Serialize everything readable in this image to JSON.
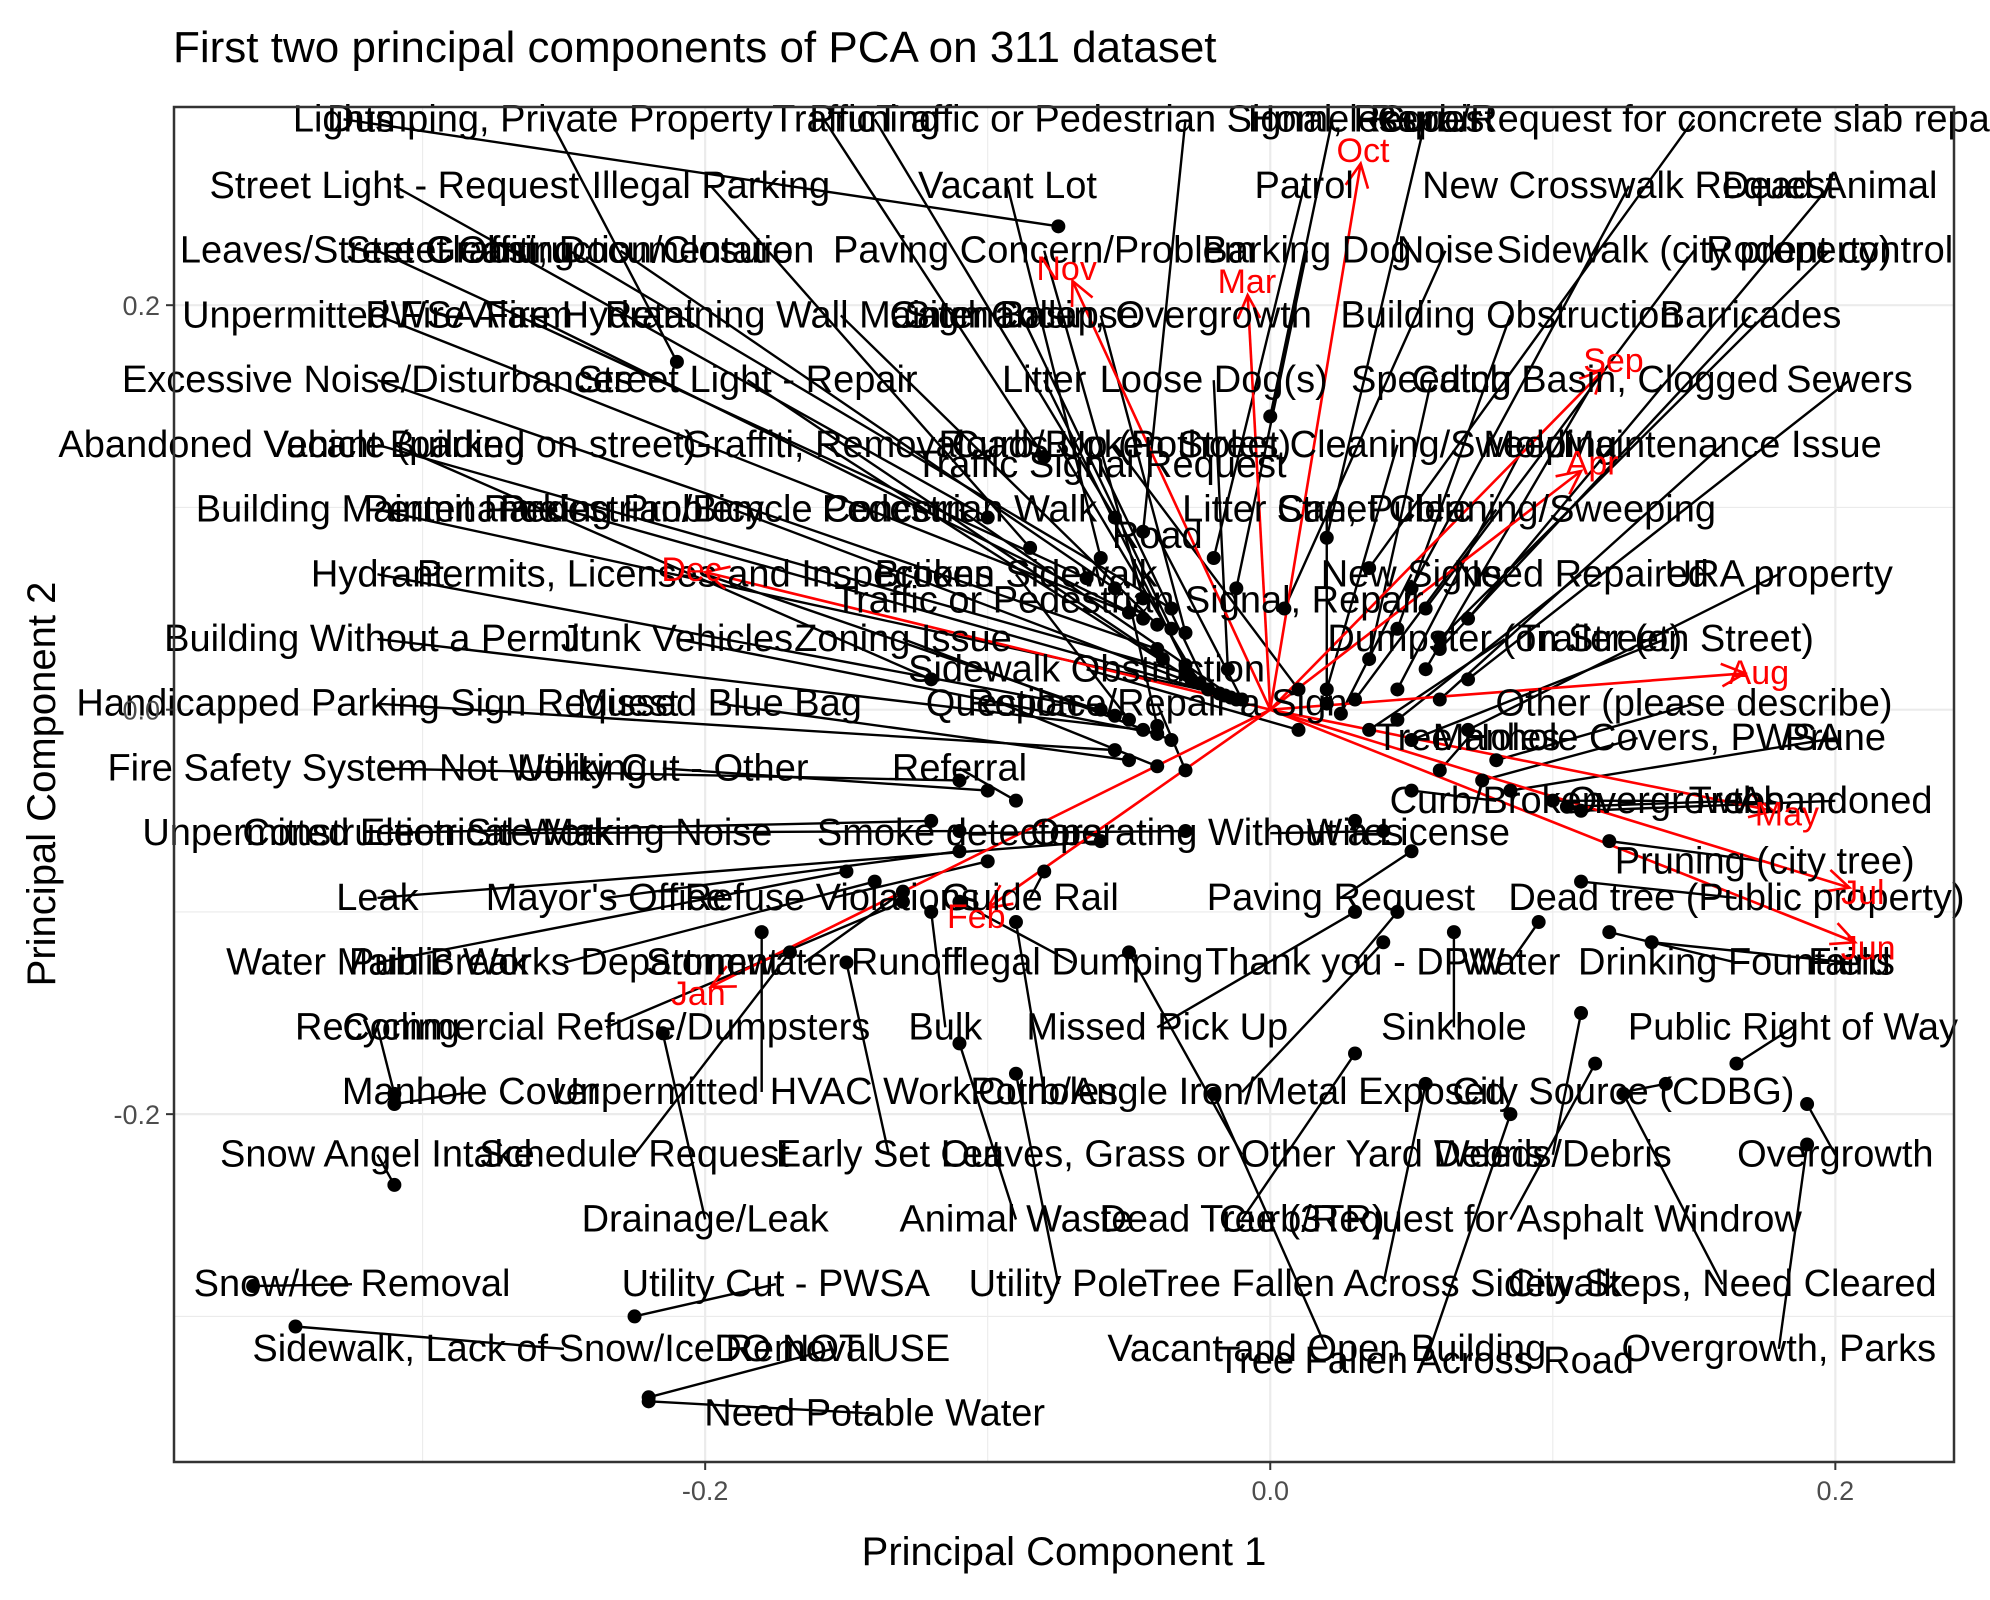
{
  "chart_data": {
    "type": "scatter",
    "title": "First two principal components of PCA on 311 dataset",
    "xlabel": "Principal Component 1",
    "ylabel": "Principal Component 2",
    "xlim": [
      -0.388,
      0.242
    ],
    "ylim": [
      -0.372,
      0.298
    ],
    "xticks": [
      -0.2,
      0.0,
      0.2
    ],
    "yticks": [
      -0.2,
      0.0,
      0.2
    ],
    "xtick_labels": [
      "-0.2",
      "0.0",
      "0.2"
    ],
    "ytick_labels": [
      "-0.2",
      "0.0",
      "0.2"
    ],
    "grid": true,
    "colors": {
      "points": "#000000",
      "loadings": "#ff0000",
      "grid": "#ebebeb",
      "panel_border": "#333333"
    },
    "points": [
      {
        "label": "Lights",
        "x": -0.075,
        "y": 0.239,
        "lx": -0.328,
        "ly": 0.286
      },
      {
        "label": "Dumping, Private Property",
        "x": -0.21,
        "y": 0.172,
        "lx": -0.255,
        "ly": 0.286
      },
      {
        "label": "Traffic",
        "x": -0.08,
        "y": 0.125,
        "lx": -0.158,
        "ly": 0.286
      },
      {
        "label": "Pruning",
        "x": -0.055,
        "y": 0.095,
        "lx": -0.14,
        "ly": 0.286
      },
      {
        "label": "Traffic or Pedestrian Signal, Request",
        "x": -0.045,
        "y": 0.088,
        "lx": -0.03,
        "ly": 0.286
      },
      {
        "label": "Homeless",
        "x": 0.0,
        "y": 0.145,
        "lx": 0.022,
        "ly": 0.286
      },
      {
        "label": "Repair",
        "x": 0.02,
        "y": 0.085,
        "lx": 0.055,
        "ly": 0.286
      },
      {
        "label": "Curb/Request for concrete slab repair",
        "x": 0.035,
        "y": 0.07,
        "lx": 0.15,
        "ly": 0.286
      },
      {
        "label": "Street Light - Request",
        "x": -0.1,
        "y": 0.095,
        "lx": -0.31,
        "ly": 0.253
      },
      {
        "label": "Illegal Parking",
        "x": -0.085,
        "y": 0.08,
        "lx": -0.198,
        "ly": 0.253
      },
      {
        "label": "Vacant Lot",
        "x": -0.06,
        "y": 0.075,
        "lx": -0.093,
        "ly": 0.253
      },
      {
        "label": "Patrol",
        "x": -0.02,
        "y": 0.075,
        "lx": 0.012,
        "ly": 0.253
      },
      {
        "label": "New Crosswalk Request",
        "x": 0.05,
        "y": 0.06,
        "lx": 0.127,
        "ly": 0.253
      },
      {
        "label": "Dead Animal",
        "x": 0.07,
        "y": 0.045,
        "lx": 0.198,
        "ly": 0.253
      },
      {
        "label": "Leaves/Street Cleaning",
        "x": -0.065,
        "y": 0.065,
        "lx": -0.316,
        "ly": 0.221
      },
      {
        "label": "Graffiti, Documentation",
        "x": -0.055,
        "y": 0.06,
        "lx": -0.23,
        "ly": 0.221
      },
      {
        "label": "Paving Concern/Problem",
        "x": -0.045,
        "y": 0.055,
        "lx": -0.08,
        "ly": 0.221
      },
      {
        "label": "Barking Dog",
        "x": -0.012,
        "y": 0.06,
        "lx": 0.013,
        "ly": 0.221
      },
      {
        "label": "Noise",
        "x": 0.005,
        "y": 0.05,
        "lx": 0.062,
        "ly": 0.221
      },
      {
        "label": "Sidewalk (city property)",
        "x": 0.055,
        "y": 0.05,
        "lx": 0.15,
        "ly": 0.221
      },
      {
        "label": "Rodent control",
        "x": 0.06,
        "y": 0.035,
        "lx": 0.198,
        "ly": 0.221
      },
      {
        "label": "Street Obstruction/Closure",
        "x": -0.035,
        "y": 0.05,
        "lx": -0.248,
        "ly": 0.221
      },
      {
        "label": "Unpermitted Fire Alarm",
        "x": -0.05,
        "y": 0.048,
        "lx": -0.316,
        "ly": 0.189
      },
      {
        "label": "PWSA Fire Hydrant",
        "x": -0.045,
        "y": 0.045,
        "lx": -0.262,
        "ly": 0.189
      },
      {
        "label": "Retaining Wall Maintenance",
        "x": -0.04,
        "y": 0.042,
        "lx": -0.152,
        "ly": 0.189
      },
      {
        "label": "Sign Collapse",
        "x": -0.035,
        "y": 0.04,
        "lx": -0.088,
        "ly": 0.189
      },
      {
        "label": "Catch Basin, Overgrowth",
        "x": -0.03,
        "y": 0.038,
        "lx": -0.06,
        "ly": 0.189
      },
      {
        "label": "Building Obstruction",
        "x": 0.045,
        "y": 0.04,
        "lx": 0.085,
        "ly": 0.189
      },
      {
        "label": "Barricades",
        "x": 0.06,
        "y": 0.03,
        "lx": 0.17,
        "ly": 0.189
      },
      {
        "label": "Excessive Noise/Disturbances",
        "x": -0.04,
        "y": 0.03,
        "lx": -0.316,
        "ly": 0.157
      },
      {
        "label": "Street Light - Repair",
        "x": -0.038,
        "y": 0.025,
        "lx": -0.185,
        "ly": 0.157
      },
      {
        "label": "Litter",
        "x": -0.03,
        "y": 0.022,
        "lx": -0.08,
        "ly": 0.157
      },
      {
        "label": "Loose Dog(s)",
        "x": -0.015,
        "y": 0.02,
        "lx": -0.02,
        "ly": 0.157
      },
      {
        "label": "Speeding",
        "x": 0.035,
        "y": 0.025,
        "lx": 0.057,
        "ly": 0.157
      },
      {
        "label": "Catch Basin, Clogged",
        "x": 0.055,
        "y": 0.02,
        "lx": 0.115,
        "ly": 0.157
      },
      {
        "label": "Sewers",
        "x": 0.07,
        "y": 0.015,
        "lx": 0.205,
        "ly": 0.157
      },
      {
        "label": "Abandoned Vehicle (parked on street)",
        "x": -0.03,
        "y": 0.018,
        "lx": -0.316,
        "ly": 0.125
      },
      {
        "label": "Vacant Building",
        "x": -0.12,
        "y": 0.015,
        "lx": -0.31,
        "ly": 0.125
      },
      {
        "label": "Graffiti, Removal",
        "x": -0.028,
        "y": 0.015,
        "lx": -0.158,
        "ly": 0.125
      },
      {
        "label": "Curb/Broken",
        "x": -0.025,
        "y": 0.013,
        "lx": -0.075,
        "ly": 0.125
      },
      {
        "label": "Roads Up (Potholes)",
        "x": 0.01,
        "y": 0.01,
        "lx": -0.055,
        "ly": 0.125
      },
      {
        "label": "Street Cleaning/Sweeping",
        "x": 0.02,
        "y": 0.01,
        "lx": 0.045,
        "ly": 0.125
      },
      {
        "label": "Mold",
        "x": 0.045,
        "y": 0.01,
        "lx": 0.09,
        "ly": 0.125
      },
      {
        "label": "Maintenance Issue",
        "x": 0.06,
        "y": 0.005,
        "lx": 0.16,
        "ly": 0.125
      },
      {
        "label": "Traffic Signal Request",
        "x": -0.022,
        "y": 0.01,
        "lx": -0.06,
        "ly": 0.115
      },
      {
        "label": "Building Maintenance",
        "x": -0.018,
        "y": 0.008,
        "lx": -0.316,
        "ly": 0.093
      },
      {
        "label": "Permit Parking Problem",
        "x": -0.016,
        "y": 0.007,
        "lx": -0.25,
        "ly": 0.093
      },
      {
        "label": "Pedestrian/Bicycle Concern",
        "x": -0.014,
        "y": 0.006,
        "lx": -0.19,
        "ly": 0.093
      },
      {
        "label": "Pedestrian Walk",
        "x": -0.012,
        "y": 0.005,
        "lx": -0.11,
        "ly": 0.093
      },
      {
        "label": "Street Cleaning/Sweeping",
        "x": 0.03,
        "y": 0.005,
        "lx": 0.08,
        "ly": 0.093
      },
      {
        "label": "Road",
        "x": -0.01,
        "y": 0.005,
        "lx": -0.04,
        "ly": 0.08
      },
      {
        "label": "Litter Can, Public",
        "x": 0.02,
        "y": 0.003,
        "lx": 0.02,
        "ly": 0.093
      },
      {
        "label": "Hydrant",
        "x": -0.06,
        "y": 0.0,
        "lx": -0.316,
        "ly": 0.061
      },
      {
        "label": "Permits, Licenses and Inspections",
        "x": -0.055,
        "y": -0.003,
        "lx": -0.2,
        "ly": 0.061
      },
      {
        "label": "Broken Sidewalk",
        "x": -0.05,
        "y": -0.005,
        "lx": -0.09,
        "ly": 0.061
      },
      {
        "label": "New Signs",
        "x": 0.025,
        "y": -0.002,
        "lx": 0.05,
        "ly": 0.061
      },
      {
        "label": "Need Repaired",
        "x": 0.045,
        "y": -0.005,
        "lx": 0.11,
        "ly": 0.061
      },
      {
        "label": "URA property",
        "x": 0.07,
        "y": -0.01,
        "lx": 0.18,
        "ly": 0.061
      },
      {
        "label": "Traffic or Pedestrian Signal, Repair",
        "x": -0.04,
        "y": -0.008,
        "lx": -0.05,
        "ly": 0.048
      },
      {
        "label": "Building Without a Permit",
        "x": -0.045,
        "y": -0.01,
        "lx": -0.316,
        "ly": 0.029
      },
      {
        "label": "Junk Vehicles",
        "x": -0.04,
        "y": -0.012,
        "lx": -0.21,
        "ly": 0.029
      },
      {
        "label": "Zoning Issue",
        "x": -0.035,
        "y": -0.015,
        "lx": -0.13,
        "ly": 0.029
      },
      {
        "label": "Dumpster (on Street)",
        "x": 0.035,
        "y": -0.01,
        "lx": 0.083,
        "ly": 0.029
      },
      {
        "label": "Trailer (on Street)",
        "x": 0.05,
        "y": -0.015,
        "lx": 0.14,
        "ly": 0.029
      },
      {
        "label": "Sidewalk Obstruction",
        "x": 0.01,
        "y": -0.01,
        "lx": -0.065,
        "ly": 0.014
      },
      {
        "label": "Handicapped Parking Sign Request",
        "x": -0.055,
        "y": -0.02,
        "lx": -0.316,
        "ly": -0.003
      },
      {
        "label": "Missed Blue Bag",
        "x": -0.05,
        "y": -0.025,
        "lx": -0.195,
        "ly": -0.003
      },
      {
        "label": "Question",
        "x": -0.04,
        "y": -0.028,
        "lx": -0.095,
        "ly": -0.003
      },
      {
        "label": "Replace/Repair a Sign",
        "x": -0.03,
        "y": -0.03,
        "lx": -0.04,
        "ly": -0.003
      },
      {
        "label": "Other (please describe)",
        "x": 0.08,
        "y": -0.025,
        "lx": 0.15,
        "ly": -0.003
      },
      {
        "label": "Tree Holes",
        "x": 0.06,
        "y": -0.03,
        "lx": 0.07,
        "ly": -0.02
      },
      {
        "label": "Manhole Covers, PWSA",
        "x": 0.075,
        "y": -0.035,
        "lx": 0.13,
        "ly": -0.02
      },
      {
        "label": "Prune",
        "x": 0.085,
        "y": -0.04,
        "lx": 0.2,
        "ly": -0.02
      },
      {
        "label": "Fire Safety System Not Working",
        "x": -0.11,
        "y": -0.035,
        "lx": -0.316,
        "ly": -0.035
      },
      {
        "label": "Utility Cut - Other",
        "x": -0.1,
        "y": -0.04,
        "lx": -0.215,
        "ly": -0.035
      },
      {
        "label": "Referral",
        "x": -0.09,
        "y": -0.045,
        "lx": -0.11,
        "ly": -0.035
      },
      {
        "label": "Curb/Broken",
        "x": 0.05,
        "y": -0.04,
        "lx": 0.08,
        "ly": -0.051
      },
      {
        "label": "Overgrowth",
        "x": 0.1,
        "y": -0.045,
        "lx": 0.14,
        "ly": -0.051
      },
      {
        "label": "Trees",
        "x": 0.105,
        "y": -0.048,
        "lx": 0.165,
        "ly": -0.051
      },
      {
        "label": "Abandoned",
        "x": 0.11,
        "y": -0.05,
        "lx": 0.2,
        "ly": -0.051
      },
      {
        "label": "Operating Without a License",
        "x": 0.04,
        "y": -0.06,
        "lx": 0.0,
        "ly": -0.067
      },
      {
        "label": "Wires",
        "x": 0.03,
        "y": -0.055,
        "lx": 0.03,
        "ly": -0.067
      },
      {
        "label": "Unpermitted Electrical Work",
        "x": -0.12,
        "y": -0.055,
        "lx": -0.316,
        "ly": -0.067
      },
      {
        "label": "Construction Site Making Noise",
        "x": -0.11,
        "y": -0.06,
        "lx": -0.27,
        "ly": -0.067
      },
      {
        "label": "Smoke detectors",
        "x": -0.03,
        "y": -0.06,
        "lx": -0.11,
        "ly": -0.067
      },
      {
        "label": "Pruning (city tree)",
        "x": 0.12,
        "y": -0.065,
        "lx": 0.175,
        "ly": -0.081
      },
      {
        "label": "Leak",
        "x": -0.06,
        "y": -0.065,
        "lx": -0.316,
        "ly": -0.099
      },
      {
        "label": "Mayor's Office",
        "x": -0.11,
        "y": -0.07,
        "lx": -0.235,
        "ly": -0.099
      },
      {
        "label": "Refuse Violations",
        "x": -0.1,
        "y": -0.075,
        "lx": -0.155,
        "ly": -0.099
      },
      {
        "label": "Guide Rail",
        "x": -0.08,
        "y": -0.08,
        "lx": -0.085,
        "ly": -0.099
      },
      {
        "label": "Paving Request",
        "x": 0.05,
        "y": -0.07,
        "lx": 0.025,
        "ly": -0.099
      },
      {
        "label": "Dead tree (Public property)",
        "x": 0.11,
        "y": -0.085,
        "lx": 0.165,
        "ly": -0.099
      },
      {
        "label": "Water Main Break",
        "x": -0.15,
        "y": -0.08,
        "lx": -0.316,
        "ly": -0.131
      },
      {
        "label": "Public Works Department",
        "x": -0.14,
        "y": -0.085,
        "lx": -0.25,
        "ly": -0.131
      },
      {
        "label": "Stormwater Runoff",
        "x": -0.13,
        "y": -0.09,
        "lx": -0.165,
        "ly": -0.131
      },
      {
        "label": "Illegal Dumping",
        "x": -0.11,
        "y": -0.095,
        "lx": -0.07,
        "ly": -0.131
      },
      {
        "label": "Thank you - DPW",
        "x": 0.045,
        "y": -0.1,
        "lx": 0.03,
        "ly": -0.131
      },
      {
        "label": "Water",
        "x": 0.095,
        "y": -0.105,
        "lx": 0.085,
        "ly": -0.131
      },
      {
        "label": "Drinking Fountains",
        "x": 0.12,
        "y": -0.11,
        "lx": 0.165,
        "ly": -0.131
      },
      {
        "label": "Field",
        "x": 0.135,
        "y": -0.115,
        "lx": 0.205,
        "ly": -0.131
      },
      {
        "label": "Recycling",
        "x": -0.31,
        "y": -0.19,
        "lx": -0.316,
        "ly": -0.163
      },
      {
        "label": "Commercial Refuse/Dumpsters",
        "x": -0.13,
        "y": -0.095,
        "lx": -0.235,
        "ly": -0.163
      },
      {
        "label": "Bulk",
        "x": -0.12,
        "y": -0.1,
        "lx": -0.115,
        "ly": -0.163
      },
      {
        "label": "Missed Pick Up",
        "x": 0.03,
        "y": -0.1,
        "lx": -0.04,
        "ly": -0.163
      },
      {
        "label": "Sinkhole",
        "x": 0.065,
        "y": -0.11,
        "lx": 0.065,
        "ly": -0.163
      },
      {
        "label": "Public Right of Way",
        "x": 0.165,
        "y": -0.175,
        "lx": 0.185,
        "ly": -0.163
      },
      {
        "label": "Manhole Cover",
        "x": -0.31,
        "y": -0.195,
        "lx": -0.283,
        "ly": -0.195
      },
      {
        "label": "Unpermitted HVAC Work",
        "x": -0.18,
        "y": -0.11,
        "lx": -0.18,
        "ly": -0.195
      },
      {
        "label": "Potholes",
        "x": -0.09,
        "y": -0.105,
        "lx": -0.08,
        "ly": -0.195
      },
      {
        "label": "Curb/Angle Iron/Metal Exposed",
        "x": 0.04,
        "y": -0.115,
        "lx": -0.01,
        "ly": -0.195
      },
      {
        "label": "City Source (CDBG)",
        "x": 0.14,
        "y": -0.185,
        "lx": 0.125,
        "ly": -0.195
      },
      {
        "label": "Snow Angel Intake",
        "x": -0.31,
        "y": -0.235,
        "lx": -0.316,
        "ly": -0.226
      },
      {
        "label": "Schedule Request",
        "x": -0.17,
        "y": -0.12,
        "lx": -0.225,
        "ly": -0.226
      },
      {
        "label": "Early Set Out",
        "x": -0.15,
        "y": -0.125,
        "lx": -0.135,
        "ly": -0.226
      },
      {
        "label": "Leaves, Grass or Other Yard Debris",
        "x": -0.05,
        "y": -0.12,
        "lx": -0.01,
        "ly": -0.226
      },
      {
        "label": "Weeds/Debris",
        "x": 0.11,
        "y": -0.15,
        "lx": 0.1,
        "ly": -0.226
      },
      {
        "label": "Overgrowth",
        "x": 0.19,
        "y": -0.195,
        "lx": 0.2,
        "ly": -0.226
      },
      {
        "label": "Drainage/Leak",
        "x": -0.215,
        "y": -0.16,
        "lx": -0.2,
        "ly": -0.258
      },
      {
        "label": "Animal Waste",
        "x": -0.11,
        "y": -0.165,
        "lx": -0.09,
        "ly": -0.258
      },
      {
        "label": "Dead Tree (3TR)",
        "x": 0.03,
        "y": -0.17,
        "lx": -0.01,
        "ly": -0.258
      },
      {
        "label": "Curb/Request for Asphalt Windrow",
        "x": 0.115,
        "y": -0.175,
        "lx": 0.085,
        "ly": -0.258
      },
      {
        "label": "Snow/Ice Removal",
        "x": -0.36,
        "y": -0.285,
        "lx": -0.325,
        "ly": -0.29
      },
      {
        "label": "Utility Cut - PWSA",
        "x": -0.225,
        "y": -0.3,
        "lx": -0.175,
        "ly": -0.29
      },
      {
        "label": "Utility Pole",
        "x": -0.09,
        "y": -0.18,
        "lx": -0.075,
        "ly": -0.29
      },
      {
        "label": "Tree Fallen Across Sidewalk",
        "x": 0.055,
        "y": -0.185,
        "lx": 0.04,
        "ly": -0.29
      },
      {
        "label": "City Steps, Need Cleared",
        "x": 0.125,
        "y": -0.19,
        "lx": 0.16,
        "ly": -0.29
      },
      {
        "label": "Sidewalk, Lack of Snow/Ice Removal",
        "x": -0.345,
        "y": -0.305,
        "lx": -0.25,
        "ly": -0.322
      },
      {
        "label": "DO NOT USE",
        "x": -0.22,
        "y": -0.34,
        "lx": -0.155,
        "ly": -0.322
      },
      {
        "label": "Vacant and Open Building",
        "x": -0.02,
        "y": -0.19,
        "lx": 0.02,
        "ly": -0.322
      },
      {
        "label": "Tree Fallen Across Road",
        "x": 0.085,
        "y": -0.2,
        "lx": 0.055,
        "ly": -0.328
      },
      {
        "label": "Overgrowth, Parks",
        "x": 0.19,
        "y": -0.215,
        "lx": 0.18,
        "ly": -0.322
      },
      {
        "label": "Need Potable Water",
        "x": -0.22,
        "y": -0.342,
        "lx": -0.14,
        "ly": -0.354
      }
    ],
    "loadings": [
      {
        "label": "Jan",
        "x": -0.198,
        "y": -0.137
      },
      {
        "label": "Feb",
        "x": -0.1,
        "y": -0.098
      },
      {
        "label": "Mar",
        "x": -0.008,
        "y": 0.205
      },
      {
        "label": "Apr",
        "x": 0.11,
        "y": 0.118
      },
      {
        "label": "May",
        "x": 0.178,
        "y": -0.05
      },
      {
        "label": "Jun",
        "x": 0.207,
        "y": -0.115
      },
      {
        "label": "Jul",
        "x": 0.205,
        "y": -0.088
      },
      {
        "label": "Aug",
        "x": 0.168,
        "y": 0.018
      },
      {
        "label": "Sep",
        "x": 0.118,
        "y": 0.168
      },
      {
        "label": "Oct",
        "x": 0.032,
        "y": 0.27
      },
      {
        "label": "Nov",
        "x": -0.07,
        "y": 0.212
      },
      {
        "label": "Dec",
        "x": -0.2,
        "y": 0.068
      }
    ]
  }
}
